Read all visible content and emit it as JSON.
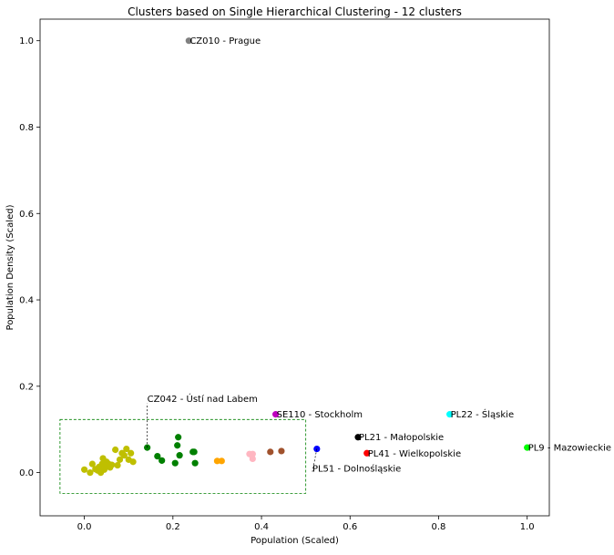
{
  "chart_data": {
    "type": "scatter",
    "title": "Clusters based on Single Hierarchical Clustering - 12 clusters",
    "xlabel": "Population (Scaled)",
    "ylabel": "Population Density (Scaled)",
    "xlim": [
      -0.1,
      1.05
    ],
    "ylim": [
      -0.1,
      1.05
    ],
    "xticks": [
      0.0,
      0.2,
      0.4,
      0.6,
      0.8,
      1.0
    ],
    "yticks": [
      0.0,
      0.2,
      0.4,
      0.6,
      0.8,
      1.0
    ],
    "grid": false,
    "legend": "none",
    "series": [
      {
        "color": "#bfbf00",
        "points": [
          [
            0.0,
            0.007
          ],
          [
            0.013,
            0.0
          ],
          [
            0.018,
            0.02
          ],
          [
            0.025,
            0.008
          ],
          [
            0.03,
            0.005
          ],
          [
            0.033,
            0.013
          ],
          [
            0.037,
            0.0
          ],
          [
            0.04,
            0.02
          ],
          [
            0.042,
            0.033
          ],
          [
            0.045,
            0.007
          ],
          [
            0.048,
            0.015
          ],
          [
            0.05,
            0.025
          ],
          [
            0.055,
            0.02
          ],
          [
            0.058,
            0.012
          ],
          [
            0.062,
            0.018
          ],
          [
            0.07,
            0.053
          ],
          [
            0.075,
            0.017
          ],
          [
            0.08,
            0.03
          ],
          [
            0.085,
            0.045
          ],
          [
            0.09,
            0.04
          ],
          [
            0.095,
            0.055
          ],
          [
            0.1,
            0.03
          ],
          [
            0.105,
            0.045
          ],
          [
            0.11,
            0.025
          ]
        ]
      },
      {
        "color": "#008000",
        "points": [
          [
            0.142,
            0.058
          ],
          [
            0.165,
            0.038
          ],
          [
            0.175,
            0.028
          ],
          [
            0.205,
            0.022
          ],
          [
            0.21,
            0.063
          ],
          [
            0.212,
            0.082
          ],
          [
            0.215,
            0.04
          ],
          [
            0.245,
            0.048
          ],
          [
            0.248,
            0.048
          ],
          [
            0.25,
            0.022
          ]
        ]
      },
      {
        "color": "#ffa500",
        "points": [
          [
            0.3,
            0.027
          ],
          [
            0.31,
            0.027
          ]
        ]
      },
      {
        "color": "#ffb6c1",
        "points": [
          [
            0.373,
            0.043
          ],
          [
            0.38,
            0.043
          ],
          [
            0.38,
            0.032
          ]
        ]
      },
      {
        "color": "#a0522d",
        "points": [
          [
            0.42,
            0.048
          ],
          [
            0.445,
            0.05
          ]
        ]
      },
      {
        "color": "#808080",
        "points": [
          [
            0.236,
            1.0
          ]
        ]
      },
      {
        "color": "#bf00bf",
        "points": [
          [
            0.432,
            0.135
          ]
        ]
      },
      {
        "color": "#00ffff",
        "points": [
          [
            0.825,
            0.135
          ]
        ]
      },
      {
        "color": "#000000",
        "points": [
          [
            0.618,
            0.082
          ]
        ]
      },
      {
        "color": "#ff0000",
        "points": [
          [
            0.638,
            0.045
          ]
        ]
      },
      {
        "color": "#0000ff",
        "points": [
          [
            0.525,
            0.055
          ]
        ]
      },
      {
        "color": "#00ff00",
        "points": [
          [
            1.0,
            0.058
          ]
        ]
      }
    ],
    "annotations": [
      {
        "text": "CZ010 - Prague",
        "x": 0.236,
        "y": 1.0,
        "anchor": "right"
      },
      {
        "text": "SE110 - Stockholm",
        "x": 0.432,
        "y": 0.135,
        "anchor": "right"
      },
      {
        "text": "PL22 - Śląskie",
        "x": 0.825,
        "y": 0.135,
        "anchor": "right"
      },
      {
        "text": "PL21 - Małopolskie",
        "x": 0.618,
        "y": 0.082,
        "anchor": "right"
      },
      {
        "text": "PL41 - Wielkopolskie",
        "x": 0.638,
        "y": 0.045,
        "anchor": "right"
      },
      {
        "text": "PL9 - Mazowieckie",
        "x": 1.0,
        "y": 0.058,
        "anchor": "right"
      },
      {
        "text": "CZ042 - Ústí nad Labem",
        "x": 0.142,
        "y": 0.058,
        "anchor": "leader",
        "label_x": 0.142,
        "label_y": 0.16
      },
      {
        "text": "PL51 - Dolnośląskie",
        "x": 0.525,
        "y": 0.055,
        "anchor": "leader",
        "label_x": 0.515,
        "label_y": 0.002
      }
    ],
    "highlight_box": {
      "x0": -0.055,
      "x1": 0.5,
      "y0": -0.048,
      "y1": 0.123,
      "color": "#008000",
      "style": "dashed"
    }
  }
}
